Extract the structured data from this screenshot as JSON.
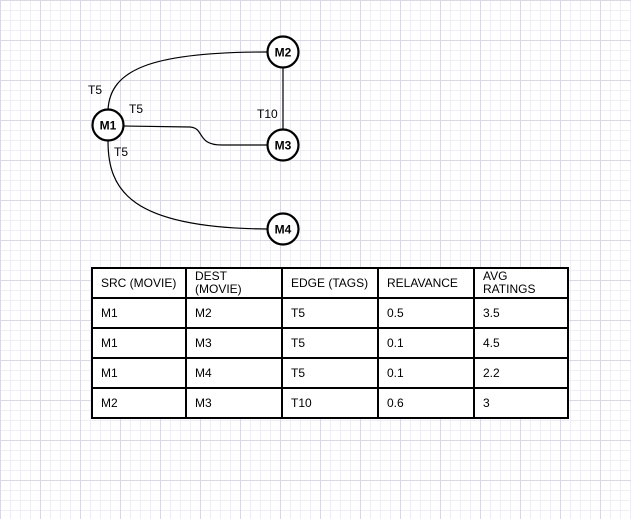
{
  "nodes": {
    "m1": "M1",
    "m2": "M2",
    "m3": "M3",
    "m4": "M4"
  },
  "edge_labels": {
    "m1_m2": "T5",
    "m1_m3": "T5",
    "m1_m4": "T5",
    "m2_m3": "T10"
  },
  "table": {
    "headers": [
      "SRC (MOVIE)",
      "DEST\n (MOVIE)",
      "EDGE (TAGS)",
      "RELAVANCE",
      " AVG\nRATINGS"
    ],
    "rows": [
      [
        "M1",
        "M2",
        "T5",
        "0.5",
        "3.5"
      ],
      [
        "M1",
        "M3",
        "T5",
        "0.1",
        "4.5"
      ],
      [
        "M1",
        " M4",
        " T5",
        "0.1",
        "2.2"
      ],
      [
        "M2",
        " M3",
        " T10",
        " 0.6",
        "3"
      ]
    ]
  }
}
